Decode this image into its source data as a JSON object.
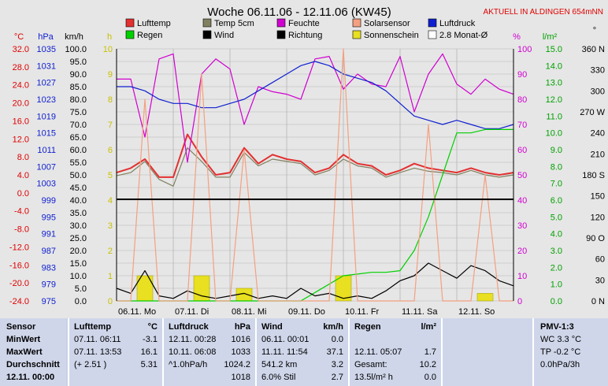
{
  "title": "Woche 06.11.06 - 12.11.06 (KW45)",
  "banner": "AKTUELL IN ALDINGEN 654mNN",
  "axis_headers": {
    "celsius": "°C",
    "hpa": "hPa",
    "kmh": "km/h",
    "h": "h",
    "percent": "%",
    "lm2": "l/m²",
    "deg": "°"
  },
  "legend": [
    {
      "label": "Lufttemp",
      "color": "#e33030"
    },
    {
      "label": "Temp 5cm",
      "color": "#808060"
    },
    {
      "label": "Feuchte",
      "color": "#d000d0"
    },
    {
      "label": "Solarsensor",
      "color": "#f4a080"
    },
    {
      "label": "Luftdruck",
      "color": "#1020d0"
    },
    {
      "label": "Regen",
      "color": "#00d000"
    },
    {
      "label": "Wind",
      "color": "#000000"
    },
    {
      "label": "Richtung",
      "color": "#000000"
    },
    {
      "label": "Sonnenschein",
      "color": "#e8e020"
    },
    {
      "label": "2.8 Monat-Ø",
      "color": "#ffffff"
    }
  ],
  "axes": {
    "celsius": [
      "32.0",
      "28.0",
      "24.0",
      "20.0",
      "16.0",
      "12.0",
      "8.0",
      "4.0",
      "0.0",
      "-4.0",
      "-8.0",
      "-12.0",
      "-16.0",
      "-20.0",
      "-24.0"
    ],
    "hpa": [
      "1035",
      "1031",
      "1027",
      "1023",
      "1019",
      "1015",
      "1011",
      "1007",
      "1003",
      "999",
      "995",
      "991",
      "987",
      "983",
      "979",
      "975"
    ],
    "kmh": [
      "100.0",
      "95.0",
      "90.0",
      "85.0",
      "80.0",
      "75.0",
      "70.0",
      "65.0",
      "60.0",
      "55.0",
      "50.0",
      "45.0",
      "40.0",
      "35.0",
      "30.0",
      "25.0",
      "20.0",
      "15.0",
      "10.0",
      "5.0",
      "0.0"
    ],
    "h": [
      "10",
      "9",
      "8",
      "7",
      "6",
      "5",
      "4",
      "3",
      "2",
      "1",
      "0"
    ],
    "percent": [
      "100",
      "90",
      "80",
      "70",
      "60",
      "50",
      "40",
      "30",
      "20",
      "10",
      "0"
    ],
    "lm2": [
      "15.0",
      "14.0",
      "13.0",
      "12.0",
      "11.0",
      "10.0",
      "9.0",
      "8.0",
      "7.0",
      "6.0",
      "5.0",
      "4.0",
      "3.0",
      "2.0",
      "1.0",
      "0.0"
    ],
    "deg": [
      "360 N",
      "330",
      "300",
      "270 W",
      "240",
      "210",
      "180 S",
      "150",
      "120",
      "90 O",
      "60",
      "30",
      "0 N"
    ],
    "days": [
      "06.11. Mo",
      "07.11. Di",
      "08.11. Mi",
      "09.11. Do",
      "10.11. Fr",
      "11.11. Sa",
      "12.11. So"
    ]
  },
  "chart_data": {
    "type": "line",
    "title": "Woche 06.11.06 - 12.11.06 (KW45)",
    "x": [
      0,
      6,
      12,
      18,
      24,
      30,
      36,
      42,
      48,
      54,
      60,
      66,
      72,
      78,
      84,
      90,
      96,
      102,
      108,
      114,
      120,
      126,
      132,
      138,
      144,
      150,
      156,
      162,
      168
    ],
    "xlabel": "",
    "xunit": "hours since 06.11. 00:00",
    "series": [
      {
        "name": "Lufttemp",
        "unit": "°C",
        "axis": "celsius",
        "color": "#e33030",
        "values": [
          4.5,
          5.5,
          7.5,
          3.5,
          3.5,
          13.0,
          8.0,
          4.0,
          4.5,
          10.0,
          6.5,
          8.5,
          7.5,
          7.0,
          4.5,
          5.5,
          8.5,
          6.5,
          6.0,
          4.0,
          5.0,
          6.5,
          5.5,
          5.0,
          4.5,
          5.5,
          4.5,
          4.0,
          4.5
        ]
      },
      {
        "name": "Temp 5cm",
        "unit": "°C",
        "axis": "celsius",
        "color": "#808060",
        "values": [
          3.8,
          4.5,
          7.0,
          3.0,
          1.5,
          10.0,
          7.0,
          3.5,
          3.5,
          9.0,
          6.0,
          7.5,
          7.0,
          6.5,
          4.0,
          5.0,
          7.5,
          6.0,
          5.5,
          3.5,
          4.5,
          5.5,
          4.8,
          4.5,
          4.0,
          5.0,
          4.0,
          3.5,
          4.0
        ]
      },
      {
        "name": "Feuchte",
        "unit": "%",
        "axis": "percent",
        "color": "#d000d0",
        "values": [
          88,
          88,
          65,
          96,
          98,
          55,
          90,
          96,
          92,
          70,
          85,
          83,
          82,
          80,
          96,
          97,
          84,
          90,
          86,
          85,
          97,
          75,
          90,
          98,
          86,
          82,
          88,
          84,
          82
        ]
      },
      {
        "name": "Luftdruck",
        "unit": "hPa",
        "axis": "hpa",
        "color": "#1020d0",
        "values": [
          1026,
          1026,
          1025,
          1023,
          1022,
          1022,
          1021,
          1021,
          1022,
          1023,
          1025,
          1027,
          1029,
          1031,
          1032,
          1031,
          1029,
          1028,
          1027,
          1025,
          1022,
          1019,
          1018,
          1017,
          1018,
          1017,
          1016,
          1016,
          1017
        ]
      },
      {
        "name": "Regen",
        "unit": "l/m²",
        "axis": "lm2",
        "color": "#00d000",
        "values": [
          0,
          0,
          0,
          0,
          0,
          0,
          0,
          0,
          0,
          0,
          0,
          0,
          0,
          0,
          0.5,
          1.0,
          1.5,
          1.6,
          1.7,
          1.7,
          1.8,
          3.0,
          5.0,
          7.5,
          10.0,
          10.0,
          10.2,
          10.2,
          10.2
        ]
      },
      {
        "name": "Wind",
        "unit": "km/h",
        "axis": "kmh",
        "color": "#000000",
        "values": [
          5,
          3,
          12,
          2,
          1,
          4,
          2,
          1,
          2,
          3,
          1,
          2,
          1,
          5,
          2,
          3,
          1,
          2,
          1,
          4,
          8,
          10,
          15,
          12,
          9,
          14,
          12,
          8,
          6
        ]
      },
      {
        "name": "Solarsensor",
        "unit": "%",
        "axis": "percent",
        "color": "#f4a080",
        "values": [
          0,
          0,
          80,
          0,
          0,
          0,
          90,
          0,
          0,
          60,
          0,
          0,
          0,
          0,
          0,
          0,
          100,
          0,
          0,
          0,
          0,
          0,
          70,
          0,
          0,
          0,
          50,
          0,
          0
        ]
      }
    ],
    "sunshine_h": [
      0,
      0,
      1,
      0,
      0,
      0,
      1,
      0,
      0,
      0.5,
      0,
      0,
      0,
      0,
      0,
      0,
      1,
      0,
      0,
      0,
      0,
      0,
      0,
      0,
      0,
      0,
      0.3,
      0,
      0
    ],
    "ylim_left": [
      -24,
      32
    ],
    "ylim_hpa": [
      975,
      1035
    ],
    "grid": true,
    "legend_position": "top"
  },
  "stats": {
    "headers": {
      "sensor": "Sensor",
      "lufttemp": "Lufttemp",
      "lufttemp_unit": "°C",
      "luftdruck": "Luftdruck",
      "luftdruck_unit": "hPa",
      "wind": "Wind",
      "wind_unit": "km/h",
      "regen": "Regen",
      "regen_unit": "l/m²",
      "pmv": "PMV-1:3"
    },
    "rows": [
      {
        "label": "MinWert",
        "lt_time": "07.11.  06:11",
        "lt_val": "-3.1",
        "ld_time": "12.11.  00:28",
        "ld_val": "1016",
        "w_time": "06.11.  00:01",
        "w_val": "0.0",
        "r_time": "",
        "r_val": "",
        "pmv": "WC 3.3 °C"
      },
      {
        "label": "MaxWert",
        "lt_time": "07.11.  13:53",
        "lt_val": "16.1",
        "ld_time": "10.11.  06:08",
        "ld_val": "1033",
        "w_time": "11.11.  11:54",
        "w_val": "37.1",
        "r_time": "12.11.  05:07",
        "r_val": "1.7",
        "pmv": "TP -0.2 °C"
      },
      {
        "label": "Durchschnitt",
        "lt_time": "(+ 2.51 )",
        "lt_val": "5.31",
        "ld_time": "^1.0hPa/h",
        "ld_val": "1024.2",
        "w_time": "541.2 km",
        "w_val": "3.2",
        "r_time": "Gesamt:",
        "r_val": "10.2",
        "pmv": "0.0hPa/3h"
      }
    ],
    "partial_row": {
      "label": "12.11. 00:00",
      "ld_val": "1018",
      "w_time": "6.0% Stil",
      "w_val": "2.7",
      "r_time": "13.5l/m² h",
      "r_val": "0.0"
    }
  }
}
